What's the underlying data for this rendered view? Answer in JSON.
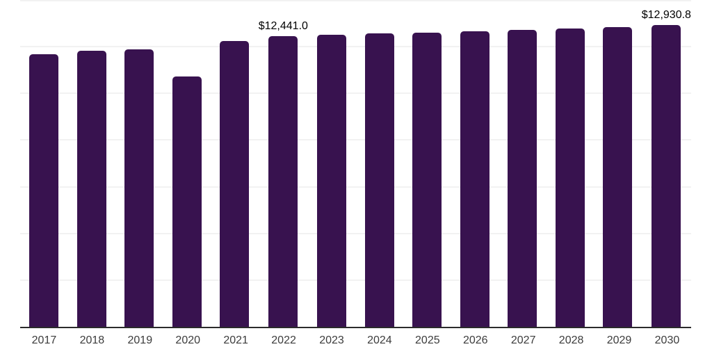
{
  "chart_data": {
    "type": "bar",
    "title": "",
    "xlabel": "",
    "ylabel": "",
    "categories": [
      "2017",
      "2018",
      "2019",
      "2020",
      "2021",
      "2022",
      "2023",
      "2024",
      "2025",
      "2026",
      "2027",
      "2028",
      "2029",
      "2030"
    ],
    "values": [
      11675,
      11825,
      11885,
      10725,
      12250,
      12441.0,
      12510,
      12570,
      12615,
      12655,
      12720,
      12785,
      12845,
      12930.8
    ],
    "point_labels": [
      "",
      "",
      "",
      "",
      "",
      "$12,441.0",
      "",
      "",
      "",
      "",
      "",
      "",
      "",
      "$12,930.8"
    ],
    "ylim": [
      0,
      14000
    ],
    "gridline_step": 2000,
    "grid": "horizontal gridlines only, no y-axis tick labels",
    "legend": "none",
    "annotations": [
      "$12,441.0 shown above 2022 bar",
      "$12,930.8 shown above 2030 bar"
    ]
  },
  "style": {
    "background_color": "#FFFFFF",
    "bar_color": "#38124F",
    "gridline_color": "#F2F2F2",
    "axis_line_color": "#2B2B2B",
    "tick_label_color": "#3C3C3C",
    "data_label_color": "#000000"
  }
}
